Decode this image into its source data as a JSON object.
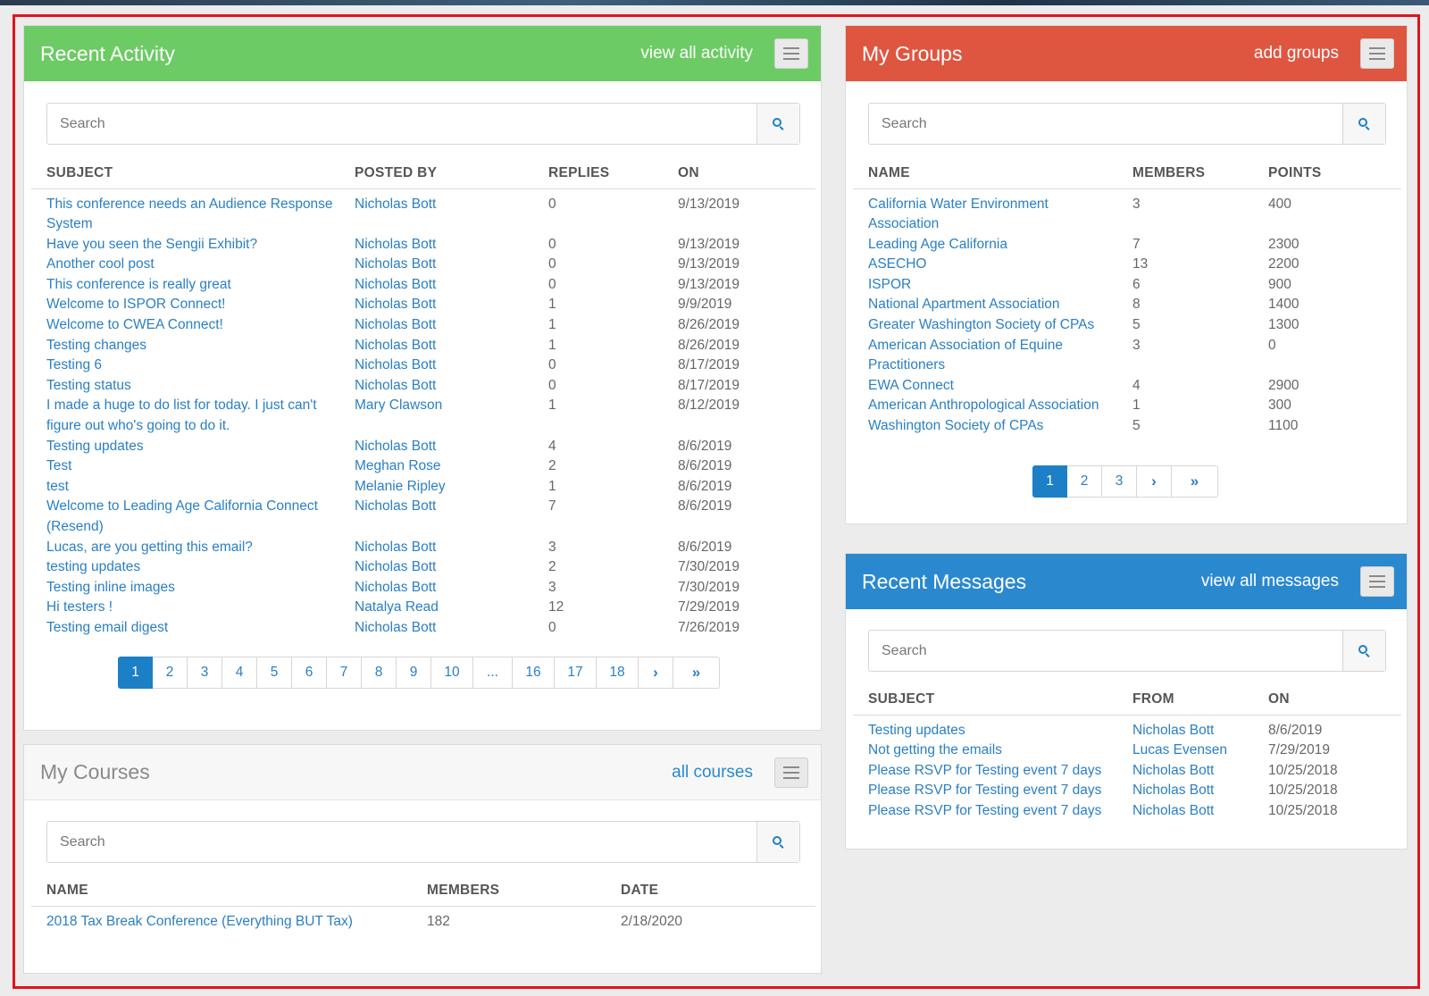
{
  "recent_activity": {
    "title": "Recent Activity",
    "link": "view all activity",
    "search_placeholder": "Search",
    "columns": [
      "SUBJECT",
      "POSTED BY",
      "REPLIES",
      "ON"
    ],
    "rows": [
      {
        "subject": "This conference needs an Audience Response System",
        "by": "Nicholas Bott",
        "replies": "0",
        "on": "9/13/2019"
      },
      {
        "subject": "Have you seen the Sengii Exhibit?",
        "by": "Nicholas Bott",
        "replies": "0",
        "on": "9/13/2019"
      },
      {
        "subject": "Another cool post",
        "by": "Nicholas Bott",
        "replies": "0",
        "on": "9/13/2019"
      },
      {
        "subject": "This conference is really great",
        "by": "Nicholas Bott",
        "replies": "0",
        "on": "9/13/2019"
      },
      {
        "subject": "Welcome to ISPOR Connect!",
        "by": "Nicholas Bott",
        "replies": "1",
        "on": "9/9/2019"
      },
      {
        "subject": "Welcome to CWEA Connect!",
        "by": "Nicholas Bott",
        "replies": "1",
        "on": "8/26/2019"
      },
      {
        "subject": "Testing changes",
        "by": "Nicholas Bott",
        "replies": "1",
        "on": "8/26/2019"
      },
      {
        "subject": "Testing 6",
        "by": "Nicholas Bott",
        "replies": "0",
        "on": "8/17/2019"
      },
      {
        "subject": "Testing status",
        "by": "Nicholas Bott",
        "replies": "0",
        "on": "8/17/2019"
      },
      {
        "subject": "I made a huge to do list for today. I just can't figure out who's going to do it.",
        "by": "Mary Clawson",
        "replies": "1",
        "on": "8/12/2019"
      },
      {
        "subject": "Testing updates",
        "by": "Nicholas Bott",
        "replies": "4",
        "on": "8/6/2019"
      },
      {
        "subject": "Test",
        "by": "Meghan Rose",
        "replies": "2",
        "on": "8/6/2019"
      },
      {
        "subject": "test",
        "by": "Melanie Ripley",
        "replies": "1",
        "on": "8/6/2019"
      },
      {
        "subject": "Welcome to Leading Age California Connect (Resend)",
        "by": "Nicholas Bott",
        "replies": "7",
        "on": "8/6/2019"
      },
      {
        "subject": "Lucas, are you getting this email?",
        "by": "Nicholas Bott",
        "replies": "3",
        "on": "8/6/2019"
      },
      {
        "subject": "testing updates",
        "by": "Nicholas Bott",
        "replies": "2",
        "on": "7/30/2019"
      },
      {
        "subject": "Testing inline images",
        "by": "Nicholas Bott",
        "replies": "3",
        "on": "7/30/2019"
      },
      {
        "subject": "Hi testers !",
        "by": "Natalya Read",
        "replies": "12",
        "on": "7/29/2019"
      },
      {
        "subject": "Testing email digest",
        "by": "Nicholas Bott",
        "replies": "0",
        "on": "7/26/2019"
      }
    ],
    "pages": [
      "1",
      "2",
      "3",
      "4",
      "5",
      "6",
      "7",
      "8",
      "9",
      "10",
      "...",
      "16",
      "17",
      "18"
    ],
    "active_page": "1"
  },
  "my_groups": {
    "title": "My Groups",
    "link": "add groups",
    "search_placeholder": "Search",
    "columns": [
      "NAME",
      "MEMBERS",
      "POINTS"
    ],
    "rows": [
      {
        "name": "California Water Environment Association",
        "members": "3",
        "points": "400"
      },
      {
        "name": "Leading Age California",
        "members": "7",
        "points": "2300"
      },
      {
        "name": "ASECHO",
        "members": "13",
        "points": "2200"
      },
      {
        "name": "ISPOR",
        "members": "6",
        "points": "900"
      },
      {
        "name": "National Apartment Association",
        "members": "8",
        "points": "1400"
      },
      {
        "name": "Greater Washington Society of CPAs",
        "members": "5",
        "points": "1300"
      },
      {
        "name": "American Association of Equine Practitioners",
        "members": "3",
        "points": "0"
      },
      {
        "name": "EWA Connect",
        "members": "4",
        "points": "2900"
      },
      {
        "name": "American Anthropological Association",
        "members": "1",
        "points": "300"
      },
      {
        "name": "Washington Society of CPAs",
        "members": "5",
        "points": "1100"
      }
    ],
    "pages": [
      "1",
      "2",
      "3"
    ],
    "active_page": "1"
  },
  "recent_messages": {
    "title": "Recent Messages",
    "link": "view all messages",
    "search_placeholder": "Search",
    "columns": [
      "SUBJECT",
      "FROM",
      "ON"
    ],
    "rows": [
      {
        "subject": "Testing updates",
        "from": "Nicholas Bott",
        "on": "8/6/2019"
      },
      {
        "subject": "Not getting the emails",
        "from": "Lucas Evensen",
        "on": "7/29/2019"
      },
      {
        "subject": "Please RSVP for Testing event 7 days",
        "from": "Nicholas Bott",
        "on": "10/25/2018"
      },
      {
        "subject": "Please RSVP for Testing event 7 days",
        "from": "Nicholas Bott",
        "on": "10/25/2018"
      },
      {
        "subject": "Please RSVP for Testing event 7 days",
        "from": "Nicholas Bott",
        "on": "10/25/2018"
      }
    ]
  },
  "my_courses": {
    "title": "My Courses",
    "link": "all courses",
    "search_placeholder": "Search",
    "columns": [
      "NAME",
      "MEMBERS",
      "DATE"
    ],
    "rows": [
      {
        "name": "2018 Tax Break Conference (Everything BUT Tax)",
        "members": "182",
        "date": "2/18/2020"
      }
    ]
  },
  "icons": {
    "menu": "hamburger-menu-icon",
    "search": "search-icon",
    "next": "chevron-right-icon",
    "last": "double-chevron-right-icon"
  },
  "colors": {
    "activity_header": "#6ccb64",
    "groups_header": "#df5640",
    "messages_header": "#2a88cf",
    "link": "#2a7fc3",
    "highlight_frame": "#e0141e"
  }
}
